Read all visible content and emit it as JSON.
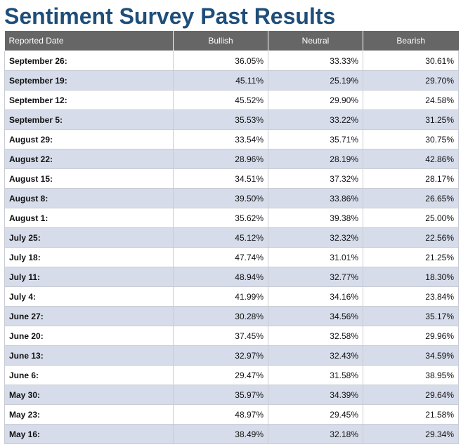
{
  "page": {
    "title": "Sentiment Survey Past Results"
  },
  "table": {
    "headers": {
      "date": "Reported Date",
      "bullish": "Bullish",
      "neutral": "Neutral",
      "bearish": "Bearish"
    },
    "rows": [
      {
        "date": "September 26:",
        "bullish": "36.05%",
        "neutral": "33.33%",
        "bearish": "30.61%"
      },
      {
        "date": "September 19:",
        "bullish": "45.11%",
        "neutral": "25.19%",
        "bearish": "29.70%"
      },
      {
        "date": "September 12:",
        "bullish": "45.52%",
        "neutral": "29.90%",
        "bearish": "24.58%"
      },
      {
        "date": "September 5:",
        "bullish": "35.53%",
        "neutral": "33.22%",
        "bearish": "31.25%"
      },
      {
        "date": "August 29:",
        "bullish": "33.54%",
        "neutral": "35.71%",
        "bearish": "30.75%"
      },
      {
        "date": "August 22:",
        "bullish": "28.96%",
        "neutral": "28.19%",
        "bearish": "42.86%"
      },
      {
        "date": "August 15:",
        "bullish": "34.51%",
        "neutral": "37.32%",
        "bearish": "28.17%"
      },
      {
        "date": "August 8:",
        "bullish": "39.50%",
        "neutral": "33.86%",
        "bearish": "26.65%"
      },
      {
        "date": "August 1:",
        "bullish": "35.62%",
        "neutral": "39.38%",
        "bearish": "25.00%"
      },
      {
        "date": "July 25:",
        "bullish": "45.12%",
        "neutral": "32.32%",
        "bearish": "22.56%"
      },
      {
        "date": "July 18:",
        "bullish": "47.74%",
        "neutral": "31.01%",
        "bearish": "21.25%"
      },
      {
        "date": "July 11:",
        "bullish": "48.94%",
        "neutral": "32.77%",
        "bearish": "18.30%"
      },
      {
        "date": "July 4:",
        "bullish": "41.99%",
        "neutral": "34.16%",
        "bearish": "23.84%"
      },
      {
        "date": "June 27:",
        "bullish": "30.28%",
        "neutral": "34.56%",
        "bearish": "35.17%"
      },
      {
        "date": "June 20:",
        "bullish": "37.45%",
        "neutral": "32.58%",
        "bearish": "29.96%"
      },
      {
        "date": "June 13:",
        "bullish": "32.97%",
        "neutral": "32.43%",
        "bearish": "34.59%"
      },
      {
        "date": "June 6:",
        "bullish": "29.47%",
        "neutral": "31.58%",
        "bearish": "38.95%"
      },
      {
        "date": "May 30:",
        "bullish": "35.97%",
        "neutral": "34.39%",
        "bearish": "29.64%"
      },
      {
        "date": "May 23:",
        "bullish": "48.97%",
        "neutral": "29.45%",
        "bearish": "21.58%"
      },
      {
        "date": "May 16:",
        "bullish": "38.49%",
        "neutral": "32.18%",
        "bearish": "29.34%"
      }
    ]
  }
}
